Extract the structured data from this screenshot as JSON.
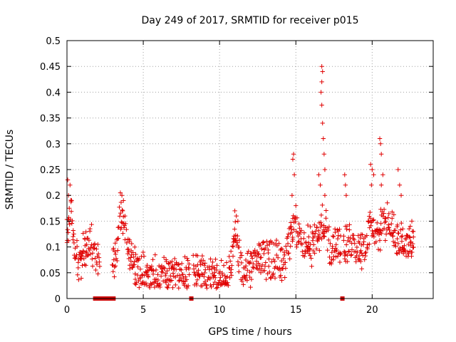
{
  "chart_data": {
    "type": "scatter",
    "title": "Day 249 of 2017, SRMTID for receiver p015",
    "xlabel": "GPS time / hours",
    "ylabel": "SRMTID / TECUs",
    "xlim": [
      0,
      24
    ],
    "ylim": [
      0,
      0.5
    ],
    "x_ticks": [
      0,
      5,
      10,
      15,
      20
    ],
    "x_tick_labels": [
      "0",
      "5",
      "10",
      "15",
      "20"
    ],
    "y_ticks": [
      0,
      0.05,
      0.1,
      0.15,
      0.2,
      0.25,
      0.3,
      0.35,
      0.4,
      0.45,
      0.5
    ],
    "y_tick_labels": [
      "0",
      "0.05",
      "0.1",
      "0.15",
      "0.2",
      "0.25",
      "0.3",
      "0.35",
      "0.4",
      "0.45",
      "0.5"
    ],
    "grid": true,
    "marker": "+",
    "color": "#e00000",
    "zero_gap_markers": [
      1.85,
      2.05,
      2.3,
      2.5,
      2.7,
      2.9,
      3.05,
      8.15,
      18.05
    ],
    "series": [
      {
        "name": "SRMTID",
        "profile": [
          [
            0.0,
            0.12
          ],
          [
            0.1,
            0.14
          ],
          [
            0.2,
            0.17
          ],
          [
            0.3,
            0.15
          ],
          [
            0.5,
            0.1
          ],
          [
            0.8,
            0.07
          ],
          [
            1.0,
            0.08
          ],
          [
            1.3,
            0.1
          ],
          [
            1.6,
            0.11
          ],
          [
            1.9,
            0.09
          ],
          [
            2.1,
            0.06
          ],
          [
            3.0,
            0.07
          ],
          [
            3.3,
            0.1
          ],
          [
            3.5,
            0.17
          ],
          [
            3.7,
            0.14
          ],
          [
            4.0,
            0.09
          ],
          [
            4.5,
            0.06
          ],
          [
            5.0,
            0.05
          ],
          [
            5.5,
            0.04
          ],
          [
            6.0,
            0.045
          ],
          [
            7.0,
            0.05
          ],
          [
            8.0,
            0.045
          ],
          [
            8.5,
            0.055
          ],
          [
            9.0,
            0.045
          ],
          [
            10.0,
            0.04
          ],
          [
            10.5,
            0.045
          ],
          [
            10.8,
            0.08
          ],
          [
            11.0,
            0.12
          ],
          [
            11.3,
            0.08
          ],
          [
            11.7,
            0.05
          ],
          [
            12.0,
            0.055
          ],
          [
            12.5,
            0.07
          ],
          [
            13.0,
            0.08
          ],
          [
            13.5,
            0.075
          ],
          [
            14.0,
            0.07
          ],
          [
            14.5,
            0.09
          ],
          [
            14.8,
            0.14
          ],
          [
            15.0,
            0.13
          ],
          [
            15.5,
            0.11
          ],
          [
            16.0,
            0.1
          ],
          [
            16.5,
            0.12
          ],
          [
            16.9,
            0.15
          ],
          [
            17.3,
            0.1
          ],
          [
            17.8,
            0.11
          ],
          [
            18.2,
            0.1
          ],
          [
            18.6,
            0.11
          ],
          [
            19.0,
            0.1
          ],
          [
            19.5,
            0.1
          ],
          [
            19.9,
            0.14
          ],
          [
            20.3,
            0.12
          ],
          [
            20.8,
            0.14
          ],
          [
            21.2,
            0.15
          ],
          [
            21.6,
            0.12
          ],
          [
            22.0,
            0.1
          ],
          [
            22.5,
            0.1
          ],
          [
            22.75,
            0.1
          ]
        ],
        "points": [
          [
            0.05,
            0.23
          ],
          [
            0.1,
            0.2
          ],
          [
            0.2,
            0.22
          ],
          [
            0.3,
            0.19
          ],
          [
            0.15,
            0.175
          ],
          [
            3.5,
            0.205
          ],
          [
            3.6,
            0.2
          ],
          [
            3.7,
            0.19
          ],
          [
            3.65,
            0.17
          ],
          [
            3.8,
            0.16
          ],
          [
            11.0,
            0.17
          ],
          [
            11.1,
            0.16
          ],
          [
            11.2,
            0.15
          ],
          [
            14.8,
            0.27
          ],
          [
            14.85,
            0.28
          ],
          [
            14.9,
            0.24
          ],
          [
            14.75,
            0.2
          ],
          [
            15.0,
            0.18
          ],
          [
            16.7,
            0.45
          ],
          [
            16.75,
            0.44
          ],
          [
            16.7,
            0.42
          ],
          [
            16.65,
            0.4
          ],
          [
            16.7,
            0.375
          ],
          [
            16.75,
            0.34
          ],
          [
            16.8,
            0.31
          ],
          [
            16.85,
            0.28
          ],
          [
            16.9,
            0.25
          ],
          [
            16.5,
            0.24
          ],
          [
            16.6,
            0.22
          ],
          [
            16.9,
            0.2
          ],
          [
            18.2,
            0.24
          ],
          [
            18.25,
            0.22
          ],
          [
            18.3,
            0.2
          ],
          [
            19.9,
            0.26
          ],
          [
            20.0,
            0.25
          ],
          [
            20.1,
            0.24
          ],
          [
            19.95,
            0.22
          ],
          [
            20.5,
            0.31
          ],
          [
            20.55,
            0.3
          ],
          [
            20.6,
            0.28
          ],
          [
            20.7,
            0.24
          ],
          [
            20.6,
            0.22
          ],
          [
            21.7,
            0.25
          ],
          [
            21.8,
            0.22
          ],
          [
            21.9,
            0.2
          ],
          [
            22.6,
            0.15
          ],
          [
            22.7,
            0.13
          ],
          [
            22.5,
            0.14
          ]
        ]
      }
    ]
  }
}
